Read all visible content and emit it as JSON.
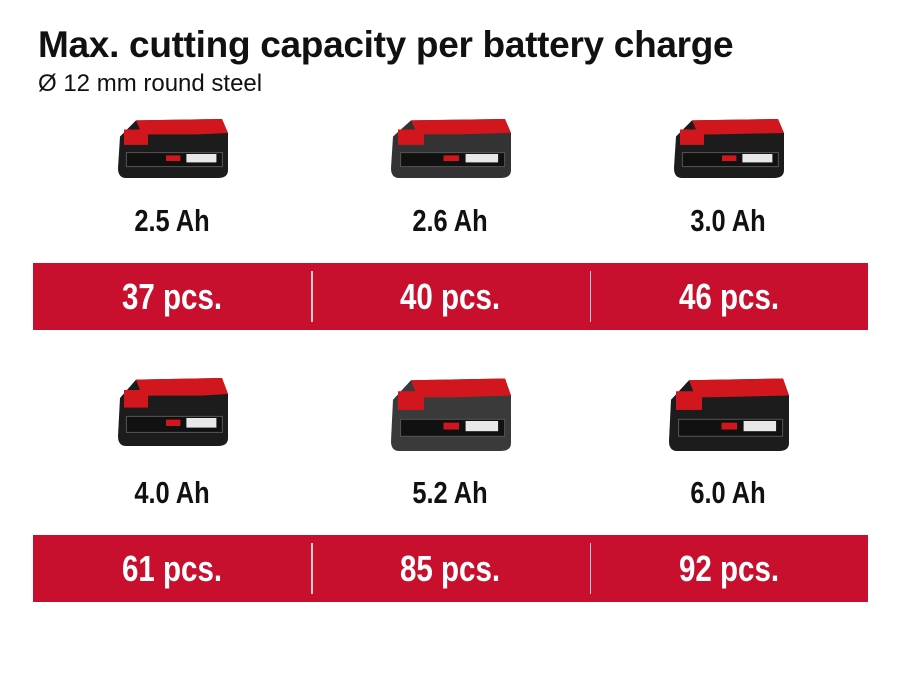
{
  "title": "Max. cutting capacity per battery charge",
  "subtitle": "Ø 12 mm round steel",
  "colors": {
    "band": "#c8102e",
    "battery_red": "#d2161e",
    "battery_black": "#1c1c1c"
  },
  "rows": [
    {
      "items": [
        {
          "capacity": "2.5 Ah",
          "result": "37 pcs.",
          "icon": "battery-pack-icon"
        },
        {
          "capacity": "2.6 Ah",
          "result": "40 pcs.",
          "icon": "battery-pack-icon"
        },
        {
          "capacity": "3.0 Ah",
          "result": "46 pcs.",
          "icon": "battery-pack-icon"
        }
      ]
    },
    {
      "items": [
        {
          "capacity": "4.0 Ah",
          "result": "61 pcs.",
          "icon": "battery-pack-icon"
        },
        {
          "capacity": "5.2 Ah",
          "result": "85 pcs.",
          "icon": "battery-pack-icon"
        },
        {
          "capacity": "6.0 Ah",
          "result": "92 pcs.",
          "icon": "battery-pack-icon"
        }
      ]
    }
  ]
}
